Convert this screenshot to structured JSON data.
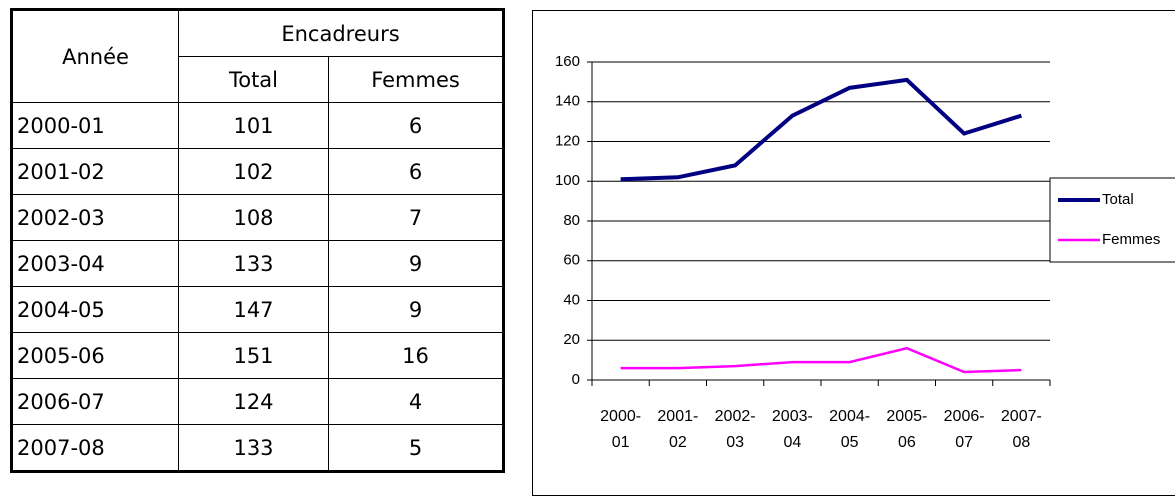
{
  "table": {
    "header": {
      "year": "Année",
      "group": "Encadreurs",
      "total": "Total",
      "women": "Femmes"
    },
    "rows": [
      [
        "2000-01",
        "101",
        "6"
      ],
      [
        "2001-02",
        "102",
        "6"
      ],
      [
        "2002-03",
        "108",
        "7"
      ],
      [
        "2003-04",
        "133",
        "9"
      ],
      [
        "2004-05",
        "147",
        "9"
      ],
      [
        "2005-06",
        "151",
        "16"
      ],
      [
        "2006-07",
        "124",
        "4"
      ],
      [
        "2007-08",
        "133",
        "5"
      ]
    ]
  },
  "chart_data": {
    "type": "line",
    "categories": [
      "2000- 01",
      "2001- 02",
      "2002- 03",
      "2003- 04",
      "2004- 05",
      "2005- 06",
      "2006- 07",
      "2007- 08"
    ],
    "series": [
      {
        "name": "Total",
        "color": "#000080",
        "values": [
          101,
          102,
          108,
          133,
          147,
          151,
          124,
          133
        ]
      },
      {
        "name": "Femmes",
        "color": "#ff00ff",
        "values": [
          6,
          6,
          7,
          9,
          9,
          16,
          4,
          5
        ]
      }
    ],
    "ylim": [
      0,
      160
    ],
    "yticks": [
      0,
      20,
      40,
      60,
      80,
      100,
      120,
      140,
      160
    ],
    "grid": true,
    "legend": "right"
  }
}
